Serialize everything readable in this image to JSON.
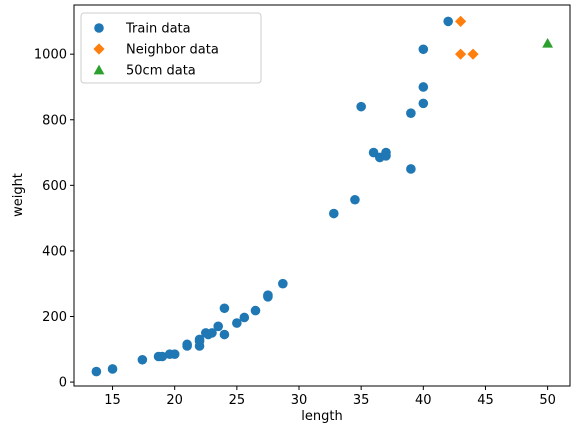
{
  "chart_data": {
    "type": "scatter",
    "title": "",
    "xlabel": "length",
    "ylabel": "weight",
    "xlim": [
      11.9,
      51.8
    ],
    "ylim": [
      -12,
      1150
    ],
    "xticks": [
      15,
      20,
      25,
      30,
      35,
      40,
      45,
      50
    ],
    "yticks": [
      0,
      200,
      400,
      600,
      800,
      1000
    ],
    "grid": false,
    "legend_position": "top-left",
    "series": [
      {
        "name": "Train data",
        "marker": "circle",
        "color": "#1f77b4",
        "points": [
          [
            13.7,
            32
          ],
          [
            15.0,
            40
          ],
          [
            17.4,
            68
          ],
          [
            18.7,
            78
          ],
          [
            19.0,
            78
          ],
          [
            19.6,
            85
          ],
          [
            20.0,
            85
          ],
          [
            21.0,
            110
          ],
          [
            21.0,
            115
          ],
          [
            22.0,
            110
          ],
          [
            22.0,
            130
          ],
          [
            22.0,
            125
          ],
          [
            22.5,
            150
          ],
          [
            22.7,
            145
          ],
          [
            23.0,
            150
          ],
          [
            23.5,
            170
          ],
          [
            24.0,
            145
          ],
          [
            24.0,
            225
          ],
          [
            25.0,
            180
          ],
          [
            25.6,
            197
          ],
          [
            26.5,
            218
          ],
          [
            27.5,
            260
          ],
          [
            27.5,
            265
          ],
          [
            28.7,
            300
          ],
          [
            32.8,
            514
          ],
          [
            34.5,
            556
          ],
          [
            35.0,
            840
          ],
          [
            36.0,
            700
          ],
          [
            36.5,
            685
          ],
          [
            37.0,
            690
          ],
          [
            37.0,
            700
          ],
          [
            39.0,
            820
          ],
          [
            39.0,
            650
          ],
          [
            40.0,
            850
          ],
          [
            40.0,
            900
          ],
          [
            40.0,
            1015
          ],
          [
            42.0,
            1100
          ]
        ]
      },
      {
        "name": "Neighbor data",
        "marker": "diamond",
        "color": "#ff7f0e",
        "points": [
          [
            43.0,
            1100
          ],
          [
            43.0,
            1000
          ],
          [
            44.0,
            1000
          ]
        ]
      },
      {
        "name": "50cm data",
        "marker": "triangle",
        "color": "#2ca02c",
        "points": [
          [
            50.0,
            1033
          ]
        ]
      }
    ]
  }
}
